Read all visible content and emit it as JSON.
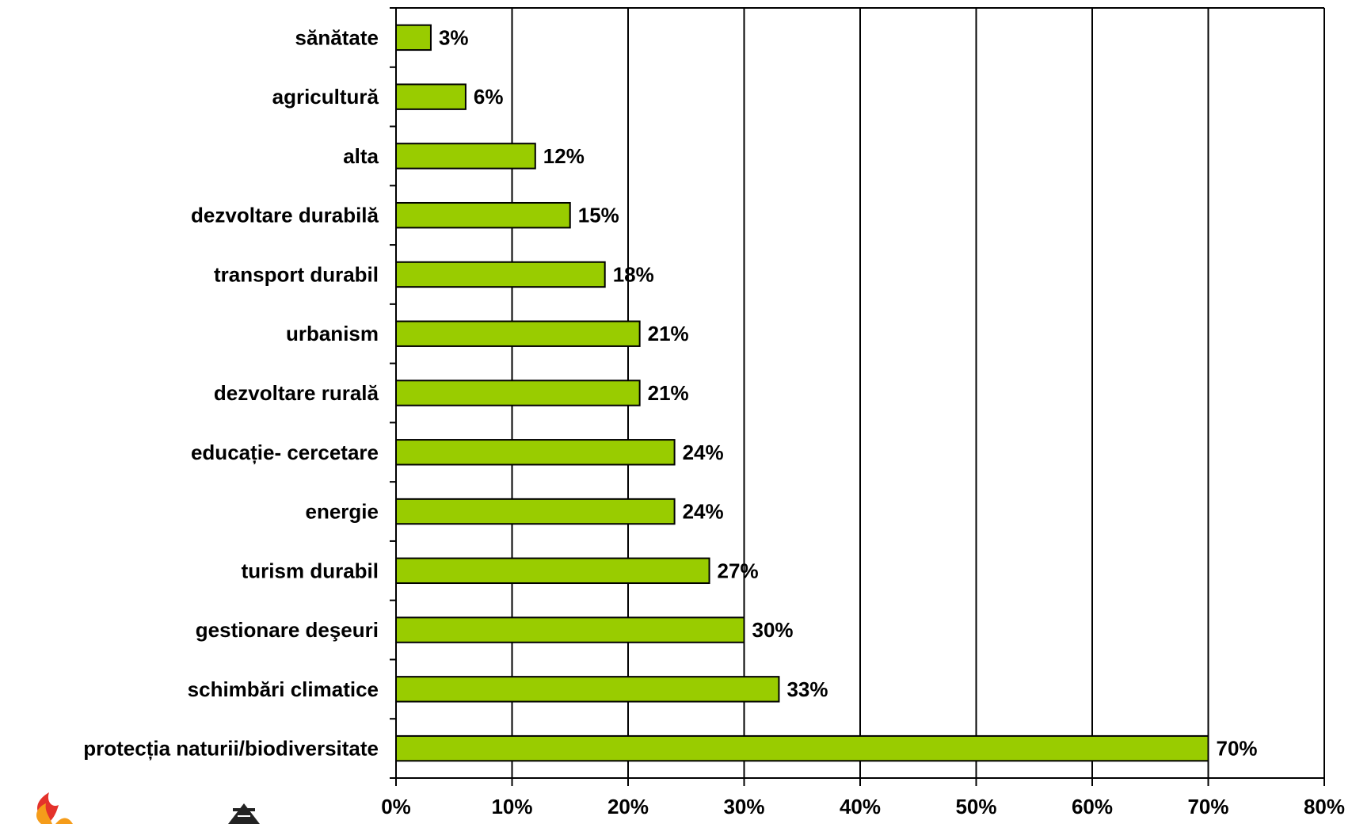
{
  "chart_data": {
    "type": "bar",
    "orientation": "horizontal",
    "categories": [
      "sănătate",
      "agricultură",
      "alta",
      "dezvoltare durabilă",
      "transport durabil",
      "urbanism",
      "dezvoltare rurală",
      "educație- cercetare",
      "energie",
      "turism durabil",
      "gestionare deşeuri",
      "schimbări climatice",
      "protecția naturii/biodiversitate"
    ],
    "values": [
      3,
      6,
      12,
      15,
      18,
      21,
      21,
      24,
      24,
      27,
      30,
      33,
      70
    ],
    "data_labels": [
      "3%",
      "6%",
      "12%",
      "15%",
      "18%",
      "21%",
      "21%",
      "24%",
      "24%",
      "27%",
      "30%",
      "33%",
      "70%"
    ],
    "x_ticks": [
      0,
      10,
      20,
      30,
      40,
      50,
      60,
      70,
      80
    ],
    "x_tick_labels": [
      "0%",
      "10%",
      "20%",
      "30%",
      "40%",
      "50%",
      "60%",
      "70%",
      "80%"
    ],
    "xlim": [
      0,
      80
    ],
    "grid": "vertical",
    "legend": "none",
    "title": "",
    "xlabel": "",
    "ylabel": "",
    "colors": {
      "bar_fill": "#99cc00",
      "bar_stroke": "#000000",
      "grid": "#000000"
    }
  },
  "logos": {
    "left_logo_icon": "flame-logo-icon",
    "right_logo_icon": "triangle-logo-icon"
  }
}
